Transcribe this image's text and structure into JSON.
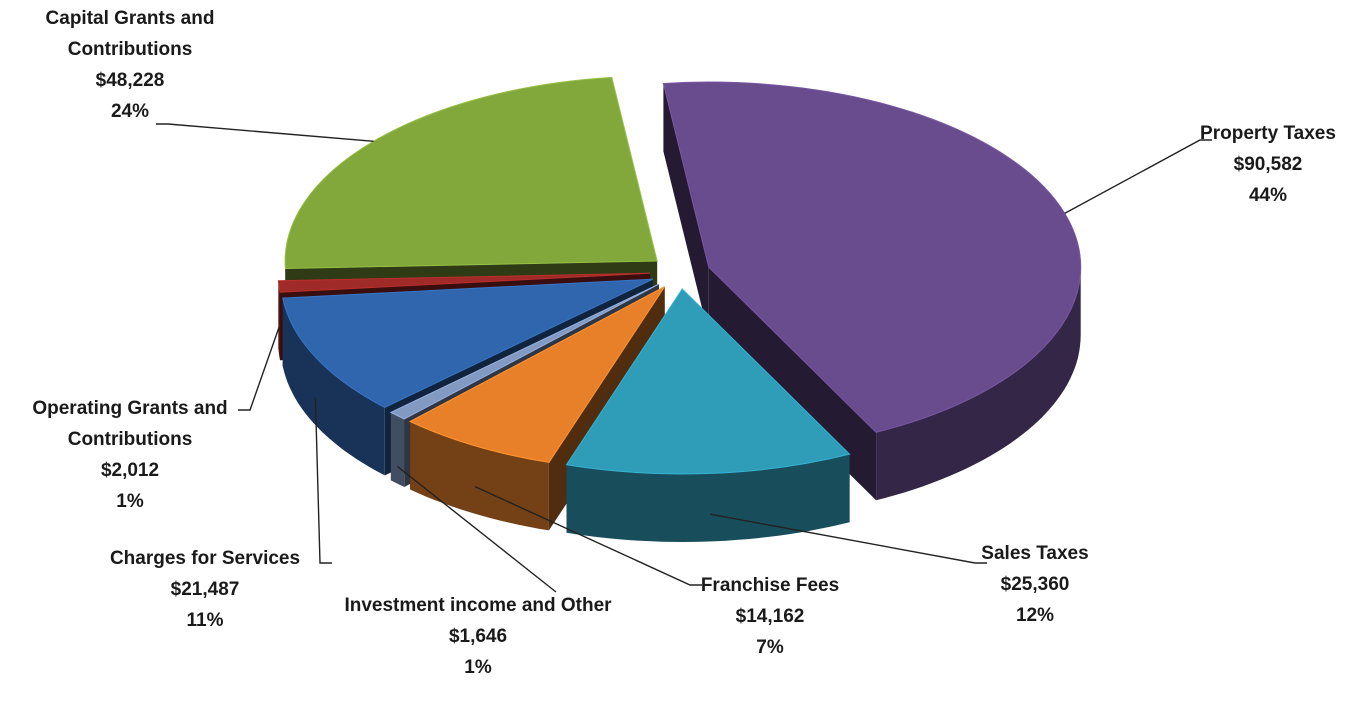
{
  "chart_data": {
    "type": "pie",
    "categories": [
      "Property Taxes",
      "Sales Taxes",
      "Franchise Fees",
      "Investment income and Other",
      "Charges for Services",
      "Operating Grants and Contributions",
      "Capital Grants and Contributions"
    ],
    "values": [
      90582,
      25360,
      14162,
      1646,
      21487,
      2012,
      48228
    ],
    "value_labels": [
      "$90,582",
      "$25,360",
      "$14,162",
      "$1,646",
      "$21,487",
      "$2,012",
      "$48,228"
    ],
    "percent_labels": [
      "44%",
      "12%",
      "7%",
      "1%",
      "11%",
      "1%",
      "24%"
    ],
    "colors": [
      "#684c8e",
      "#2f9cb8",
      "#e8802a",
      "#8299c2",
      "#3066ad",
      "#a02a27",
      "#82a83c"
    ]
  }
}
